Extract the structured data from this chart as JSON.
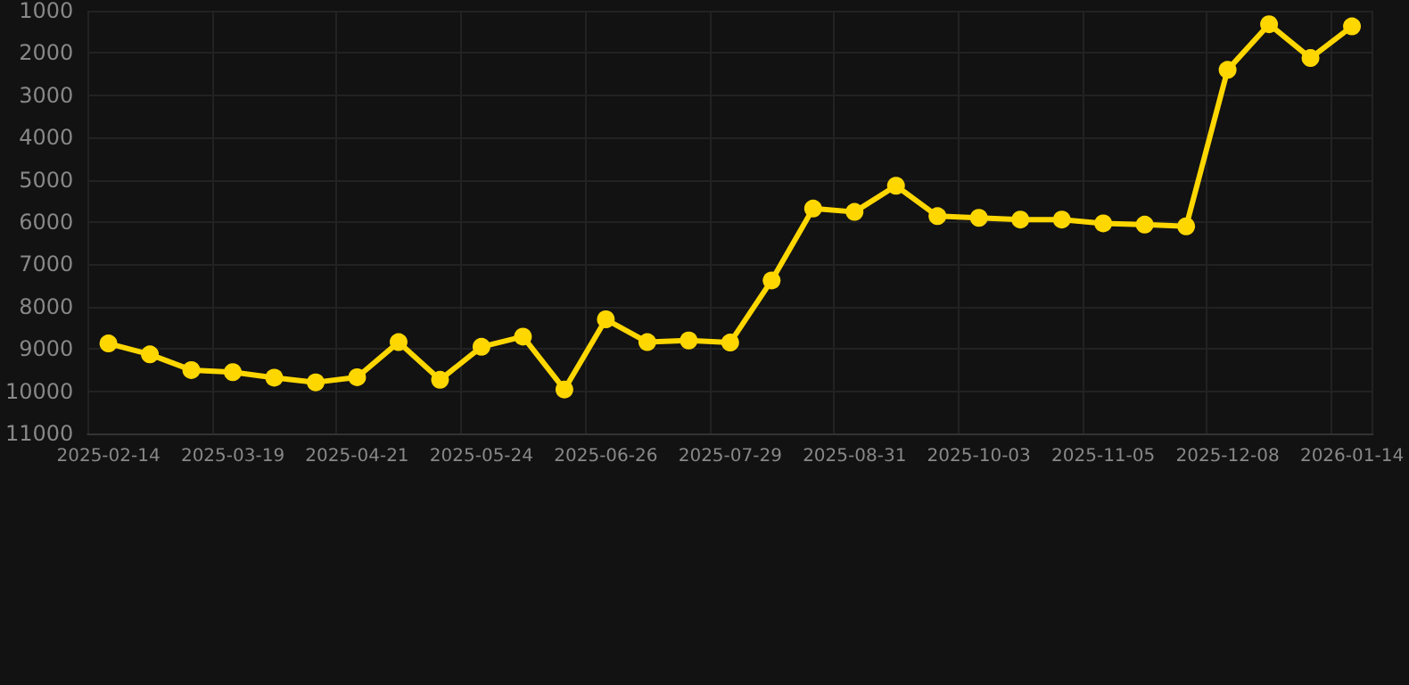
{
  "chart_data": {
    "type": "line",
    "categories": [
      "2025-02-14",
      null,
      null,
      "2025-03-19",
      null,
      null,
      "2025-04-21",
      null,
      null,
      "2025-05-24",
      null,
      null,
      "2025-06-26",
      null,
      null,
      "2025-07-29",
      null,
      null,
      "2025-08-31",
      null,
      null,
      "2025-10-03",
      null,
      null,
      "2025-11-05",
      null,
      null,
      "2025-12-08",
      null,
      null,
      "2026-01-14"
    ],
    "series": [
      {
        "color": "#ffd700",
        "values": [
          8870,
          9130,
          9500,
          9550,
          9680,
          9790,
          9670,
          8840,
          9730,
          8950,
          8710,
          9960,
          8300,
          8840,
          8800,
          8850,
          7380,
          5680,
          5760,
          5140,
          5860,
          5900,
          5940,
          5940,
          6030,
          6060,
          6100,
          2400,
          1320,
          2120,
          1370
        ]
      }
    ],
    "ylim": [
      11000,
      1000
    ],
    "yticks": [
      1000,
      2000,
      3000,
      4000,
      5000,
      6000,
      7000,
      8000,
      9000,
      10000,
      11000
    ],
    "grid": true,
    "marker": "circle",
    "line_style": "solid"
  }
}
